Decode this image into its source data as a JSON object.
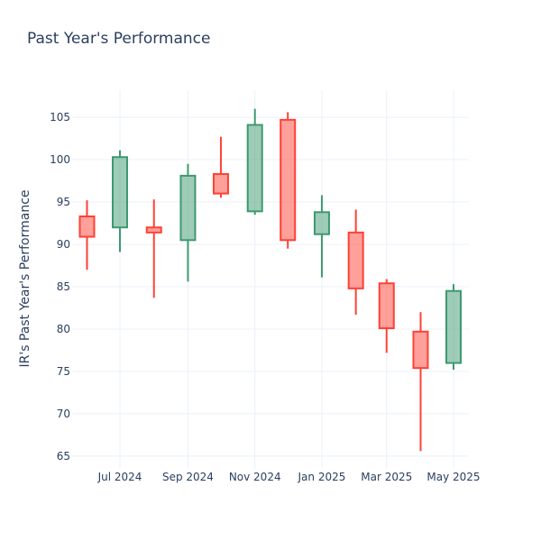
{
  "title": "Past Year's Performance",
  "chart_data": {
    "type": "candlestick",
    "title": "Past Year's Performance",
    "xlabel": "",
    "ylabel": "IR's Past Year's Performance",
    "ylim": [
      63.5,
      108.2
    ],
    "y_ticks": [
      65,
      70,
      75,
      80,
      85,
      90,
      95,
      100,
      105
    ],
    "x_ticks": [
      {
        "label": "Jul 2024",
        "date": "2024-07-01"
      },
      {
        "label": "Sep 2024",
        "date": "2024-09-01"
      },
      {
        "label": "Nov 2024",
        "date": "2024-11-01"
      },
      {
        "label": "Jan 2025",
        "date": "2025-01-01"
      },
      {
        "label": "Mar 2025",
        "date": "2025-03-01"
      },
      {
        "label": "May 2025",
        "date": "2025-05-01"
      }
    ],
    "increasing_color": "#3d9970",
    "decreasing_color": "#ff4136",
    "candles": [
      {
        "date": "2024-06-01",
        "open": 93.3,
        "high": 95.2,
        "low": 87.0,
        "close": 90.9
      },
      {
        "date": "2024-07-01",
        "open": 92.0,
        "high": 101.1,
        "low": 89.1,
        "close": 100.3
      },
      {
        "date": "2024-08-01",
        "open": 92.0,
        "high": 95.3,
        "low": 83.7,
        "close": 91.4
      },
      {
        "date": "2024-09-01",
        "open": 90.5,
        "high": 99.5,
        "low": 85.6,
        "close": 98.1
      },
      {
        "date": "2024-10-01",
        "open": 98.3,
        "high": 102.7,
        "low": 95.5,
        "close": 96.0
      },
      {
        "date": "2024-11-01",
        "open": 93.9,
        "high": 106.0,
        "low": 93.5,
        "close": 104.1
      },
      {
        "date": "2024-12-01",
        "open": 104.7,
        "high": 105.6,
        "low": 89.5,
        "close": 90.5
      },
      {
        "date": "2025-01-01",
        "open": 91.2,
        "high": 95.8,
        "low": 86.1,
        "close": 93.8
      },
      {
        "date": "2025-02-01",
        "open": 91.4,
        "high": 94.1,
        "low": 81.7,
        "close": 84.8
      },
      {
        "date": "2025-03-01",
        "open": 85.4,
        "high": 85.9,
        "low": 77.2,
        "close": 80.1
      },
      {
        "date": "2025-04-01",
        "open": 79.7,
        "high": 82.0,
        "low": 65.6,
        "close": 75.4
      },
      {
        "date": "2025-05-01",
        "open": 76.0,
        "high": 85.3,
        "low": 75.2,
        "close": 84.5
      }
    ]
  }
}
